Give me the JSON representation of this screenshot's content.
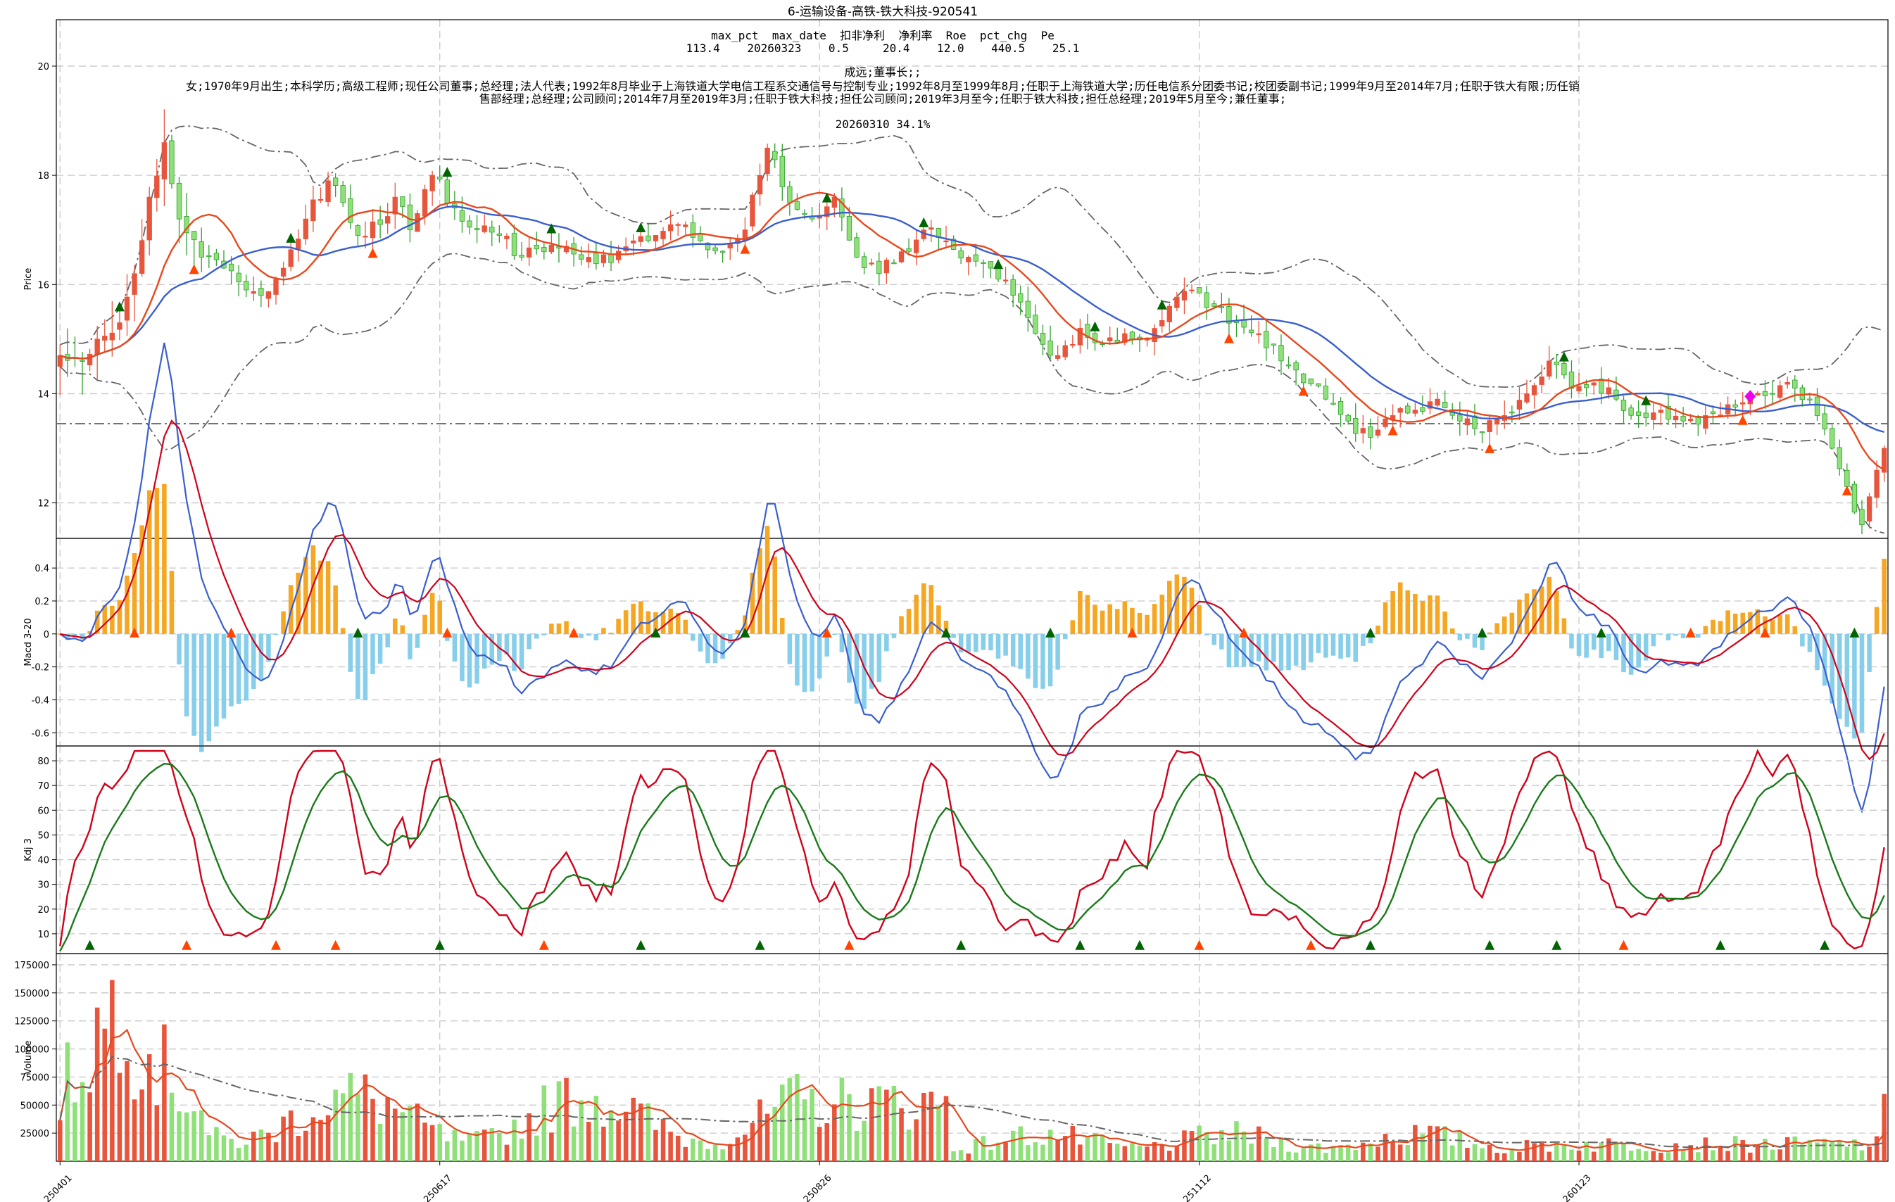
{
  "title": "6-运输设备-高铁-铁大科技-920541",
  "header": {
    "row1": "max_pct  max_date  扣非净利  净利率  Roe  pct_chg  Pe",
    "row2": "113.4    20260323    0.5     20.4    12.0    440.5    25.1",
    "person": "成远;董事长;;",
    "bio1": "女;1970年9月出生;本科学历;高级工程师;现任公司董事;总经理;法人代表;1992年8月毕业于上海铁道大学电信工程系交通信号与控制专业;1992年8月至1999年8月;任职于上海铁道大学;历任电信系分团委书记;校团委副书记;1999年9月至2014年7月;任职于铁大有限;历任销",
    "bio2": "售部经理;总经理;公司顾问;2014年7月至2019年3月;任职于铁大科技;担任公司顾问;2019年3月至今;任职于铁大科技;担任总经理;2019年5月至今;兼任董事;",
    "note": "20260310 34.1%"
  },
  "colors": {
    "up": "#e8553d",
    "down": "#90e07a",
    "down_edge": "#2ea02e",
    "ma_fast": "#e8481c",
    "ma_slow": "#3a5fcd",
    "band": "#666666",
    "macd_pos": "#f5a623",
    "macd_neg": "#87ceeb",
    "dif": "#3a5fcd",
    "dea": "#d0021b",
    "k_line": "#d0021b",
    "d_line": "#1a7a1a",
    "vol_ma_fast": "#e8481c",
    "vol_ma_slow": "#666666",
    "marker_up": "#ff4500",
    "marker_down": "#006400",
    "diamond": "#ee00ee"
  },
  "chart_data": [
    {
      "type": "candlestick",
      "ylabel": "Price",
      "ylim": [
        11.35,
        20.85
      ],
      "yticks": [
        12,
        14,
        16,
        18,
        20
      ],
      "reference_line": 13.45,
      "x_ticks": [
        "250401",
        "250617",
        "250826",
        "251112",
        "260123"
      ],
      "x_tick_index": [
        0,
        51,
        102,
        153,
        204
      ],
      "n_bars": 246,
      "anchors": [
        [
          0,
          14.7
        ],
        [
          3,
          14.6
        ],
        [
          5,
          15.0
        ],
        [
          8,
          15.3
        ],
        [
          10,
          16.2
        ],
        [
          12,
          17.6
        ],
        [
          14,
          18.6
        ],
        [
          16,
          17.2
        ],
        [
          19,
          16.5
        ],
        [
          22,
          16.3
        ],
        [
          25,
          15.9
        ],
        [
          27,
          15.8
        ],
        [
          30,
          16.3
        ],
        [
          33,
          17.2
        ],
        [
          36,
          17.9
        ],
        [
          38,
          17.5
        ],
        [
          40,
          16.9
        ],
        [
          43,
          17.1
        ],
        [
          45,
          17.6
        ],
        [
          47,
          17.0
        ],
        [
          50,
          18.0
        ],
        [
          53,
          17.4
        ],
        [
          56,
          17.0
        ],
        [
          59,
          16.9
        ],
        [
          62,
          16.5
        ],
        [
          65,
          16.6
        ],
        [
          68,
          16.7
        ],
        [
          71,
          16.5
        ],
        [
          74,
          16.4
        ],
        [
          77,
          16.8
        ],
        [
          80,
          16.9
        ],
        [
          83,
          17.1
        ],
        [
          86,
          16.8
        ],
        [
          89,
          16.6
        ],
        [
          92,
          17.0
        ],
        [
          95,
          18.5
        ],
        [
          98,
          17.5
        ],
        [
          101,
          17.2
        ],
        [
          104,
          17.6
        ],
        [
          107,
          16.5
        ],
        [
          110,
          16.2
        ],
        [
          113,
          16.6
        ],
        [
          116,
          17.0
        ],
        [
          119,
          16.8
        ],
        [
          122,
          16.5
        ],
        [
          125,
          16.3
        ],
        [
          128,
          15.8
        ],
        [
          131,
          15.1
        ],
        [
          134,
          14.7
        ],
        [
          137,
          15.2
        ],
        [
          140,
          14.9
        ],
        [
          143,
          15.1
        ],
        [
          146,
          15.0
        ],
        [
          149,
          15.6
        ],
        [
          152,
          15.9
        ],
        [
          155,
          15.6
        ],
        [
          158,
          15.3
        ],
        [
          161,
          15.1
        ],
        [
          164,
          14.6
        ],
        [
          167,
          14.2
        ],
        [
          170,
          13.9
        ],
        [
          173,
          13.5
        ],
        [
          176,
          13.2
        ],
        [
          179,
          13.6
        ],
        [
          182,
          13.7
        ],
        [
          185,
          13.9
        ],
        [
          188,
          13.5
        ],
        [
          191,
          13.3
        ],
        [
          194,
          13.6
        ],
        [
          197,
          14.0
        ],
        [
          200,
          14.6
        ],
        [
          203,
          14.1
        ],
        [
          206,
          14.2
        ],
        [
          209,
          13.9
        ],
        [
          212,
          13.6
        ],
        [
          215,
          13.7
        ],
        [
          218,
          13.5
        ],
        [
          221,
          13.6
        ],
        [
          224,
          13.8
        ],
        [
          227,
          13.9
        ],
        [
          230,
          14.0
        ],
        [
          233,
          14.1
        ],
        [
          236,
          13.6
        ],
        [
          238,
          13.0
        ],
        [
          240,
          12.3
        ],
        [
          242,
          11.6
        ],
        [
          244,
          12.6
        ],
        [
          245,
          13.0
        ]
      ],
      "overlays": [
        "MA fast",
        "MA slow",
        "Bollinger upper",
        "Bollinger lower"
      ]
    },
    {
      "type": "bar+line",
      "ylabel": "Macd 3-20",
      "ylim": [
        -0.68,
        0.58
      ],
      "yticks": [
        -0.6,
        -0.4,
        -0.2,
        0.0,
        0.2,
        0.4
      ],
      "series": [
        {
          "name": ""
        },
        {
          "name": ""
        },
        {
          "name": ""
        }
      ]
    },
    {
      "type": "line",
      "ylabel": "Kdj 3",
      "ylim": [
        2,
        86
      ],
      "yticks": [
        10,
        20,
        30,
        40,
        50,
        60,
        70,
        80
      ],
      "series": [
        {
          "name": ""
        },
        {
          "name": ""
        }
      ]
    },
    {
      "type": "bar+line",
      "ylabel": "Volume",
      "ylim": [
        0,
        185000
      ],
      "yticks": [
        25000,
        50000,
        75000,
        100000,
        125000,
        150000,
        175000
      ],
      "ytick_labels": [
        "25000",
        "50000",
        "75000",
        "100000",
        "125000",
        "150000",
        "175000"
      ]
    }
  ]
}
